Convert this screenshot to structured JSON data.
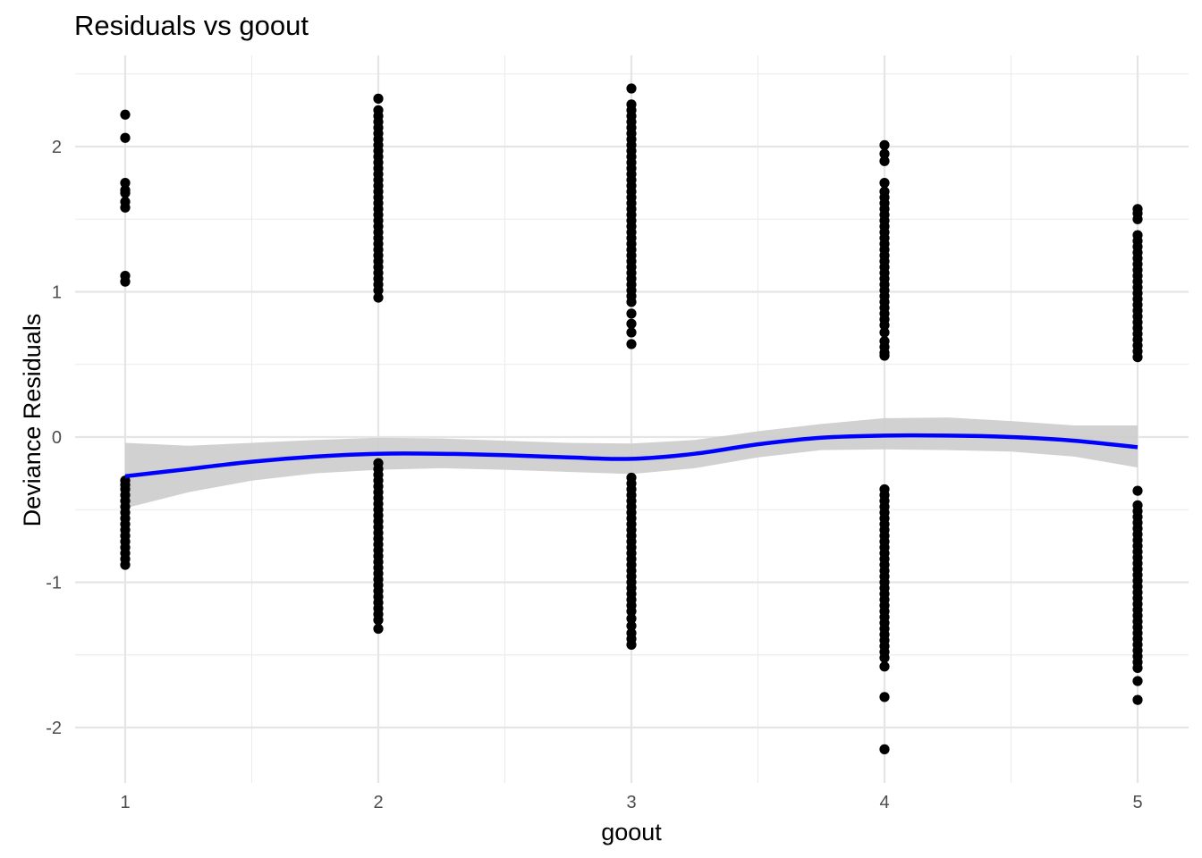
{
  "chart_data": {
    "type": "scatter",
    "title": "Residuals vs goout",
    "xlabel": "goout",
    "ylabel": "Deviance Residuals",
    "xlim": [
      0.9,
      5.15
    ],
    "ylim": [
      -2.35,
      2.5
    ],
    "x_ticks": [
      1,
      2,
      3,
      4,
      5
    ],
    "y_ticks": [
      -2,
      -1,
      0,
      1,
      2
    ],
    "x_tick_labels": [
      "1",
      "2",
      "3",
      "4",
      "5"
    ],
    "y_tick_labels": [
      "-2",
      "-1",
      "0",
      "1",
      "2"
    ],
    "grid": true,
    "legend": "none",
    "point_color": "#000000",
    "points": [
      {
        "x": 1,
        "y": [
          2.22,
          2.06,
          1.75,
          1.7,
          1.68,
          1.62,
          1.58,
          1.11,
          1.07,
          -0.3,
          -0.33,
          -0.36,
          -0.4,
          -0.44,
          -0.48,
          -0.52,
          -0.56,
          -0.6,
          -0.64,
          -0.68,
          -0.72,
          -0.76,
          -0.8,
          -0.84,
          -0.88
        ]
      },
      {
        "x": 2,
        "y": [
          2.33,
          2.25,
          2.21,
          2.17,
          2.13,
          2.09,
          2.05,
          2.01,
          1.97,
          1.93,
          1.89,
          1.85,
          1.81,
          1.77,
          1.73,
          1.69,
          1.65,
          1.61,
          1.57,
          1.53,
          1.49,
          1.45,
          1.41,
          1.37,
          1.33,
          1.29,
          1.25,
          1.21,
          1.17,
          1.13,
          1.09,
          1.05,
          1.01,
          0.96,
          -0.18,
          -0.22,
          -0.26,
          -0.3,
          -0.34,
          -0.38,
          -0.42,
          -0.46,
          -0.5,
          -0.54,
          -0.58,
          -0.62,
          -0.66,
          -0.7,
          -0.74,
          -0.78,
          -0.82,
          -0.86,
          -0.9,
          -0.94,
          -0.98,
          -1.02,
          -1.06,
          -1.1,
          -1.14,
          -1.18,
          -1.22,
          -1.26,
          -1.32
        ]
      },
      {
        "x": 3,
        "y": [
          2.4,
          2.29,
          2.25,
          2.21,
          2.17,
          2.13,
          2.09,
          2.05,
          2.01,
          1.97,
          1.93,
          1.89,
          1.85,
          1.81,
          1.77,
          1.73,
          1.69,
          1.65,
          1.61,
          1.57,
          1.53,
          1.49,
          1.45,
          1.41,
          1.37,
          1.33,
          1.29,
          1.25,
          1.21,
          1.17,
          1.13,
          1.09,
          1.05,
          1.01,
          0.97,
          0.93,
          0.85,
          0.78,
          0.72,
          0.64,
          -0.28,
          -0.32,
          -0.36,
          -0.4,
          -0.44,
          -0.48,
          -0.52,
          -0.56,
          -0.6,
          -0.64,
          -0.68,
          -0.72,
          -0.76,
          -0.8,
          -0.84,
          -0.88,
          -0.92,
          -0.96,
          -1.0,
          -1.04,
          -1.08,
          -1.12,
          -1.16,
          -1.2,
          -1.25,
          -1.3,
          -1.35,
          -1.39,
          -1.43
        ]
      },
      {
        "x": 4,
        "y": [
          2.01,
          1.95,
          1.9,
          1.75,
          1.69,
          1.65,
          1.61,
          1.57,
          1.53,
          1.49,
          1.45,
          1.41,
          1.37,
          1.33,
          1.29,
          1.25,
          1.21,
          1.17,
          1.13,
          1.09,
          1.05,
          1.01,
          0.97,
          0.93,
          0.89,
          0.85,
          0.81,
          0.77,
          0.72,
          0.66,
          0.62,
          0.58,
          0.56,
          -0.36,
          -0.4,
          -0.44,
          -0.48,
          -0.52,
          -0.56,
          -0.6,
          -0.64,
          -0.68,
          -0.72,
          -0.76,
          -0.8,
          -0.84,
          -0.88,
          -0.92,
          -0.96,
          -1.0,
          -1.04,
          -1.08,
          -1.12,
          -1.16,
          -1.2,
          -1.24,
          -1.28,
          -1.32,
          -1.36,
          -1.4,
          -1.44,
          -1.48,
          -1.52,
          -1.58,
          -1.79,
          -2.15
        ]
      },
      {
        "x": 5,
        "y": [
          1.57,
          1.54,
          1.5,
          1.39,
          1.35,
          1.31,
          1.27,
          1.23,
          1.19,
          1.15,
          1.11,
          1.07,
          1.03,
          0.99,
          0.95,
          0.91,
          0.87,
          0.83,
          0.79,
          0.75,
          0.71,
          0.67,
          0.63,
          0.59,
          0.55,
          -0.37,
          -0.47,
          -0.51,
          -0.55,
          -0.59,
          -0.63,
          -0.67,
          -0.71,
          -0.75,
          -0.79,
          -0.83,
          -0.87,
          -0.91,
          -0.95,
          -0.99,
          -1.03,
          -1.07,
          -1.11,
          -1.15,
          -1.19,
          -1.23,
          -1.27,
          -1.31,
          -1.35,
          -1.39,
          -1.43,
          -1.47,
          -1.51,
          -1.55,
          -1.59,
          -1.68,
          -1.81
        ]
      }
    ],
    "smooth": {
      "color": "#0000ff",
      "band_color": "#cccccc",
      "x": [
        1.0,
        1.25,
        1.5,
        1.75,
        2.0,
        2.25,
        2.5,
        2.75,
        3.0,
        3.25,
        3.5,
        3.75,
        4.0,
        4.25,
        4.5,
        4.75,
        5.0
      ],
      "y": [
        -0.27,
        -0.22,
        -0.17,
        -0.135,
        -0.115,
        -0.115,
        -0.125,
        -0.14,
        -0.15,
        -0.115,
        -0.05,
        -0.005,
        0.01,
        0.01,
        0.0,
        -0.025,
        -0.07
      ],
      "lower": [
        -0.49,
        -0.38,
        -0.3,
        -0.25,
        -0.225,
        -0.215,
        -0.225,
        -0.24,
        -0.255,
        -0.215,
        -0.14,
        -0.09,
        -0.085,
        -0.09,
        -0.1,
        -0.135,
        -0.21
      ],
      "upper": [
        -0.04,
        -0.06,
        -0.04,
        -0.02,
        -0.005,
        -0.01,
        -0.025,
        -0.04,
        -0.045,
        -0.02,
        0.04,
        0.09,
        0.13,
        0.135,
        0.11,
        0.08,
        0.08
      ]
    }
  }
}
